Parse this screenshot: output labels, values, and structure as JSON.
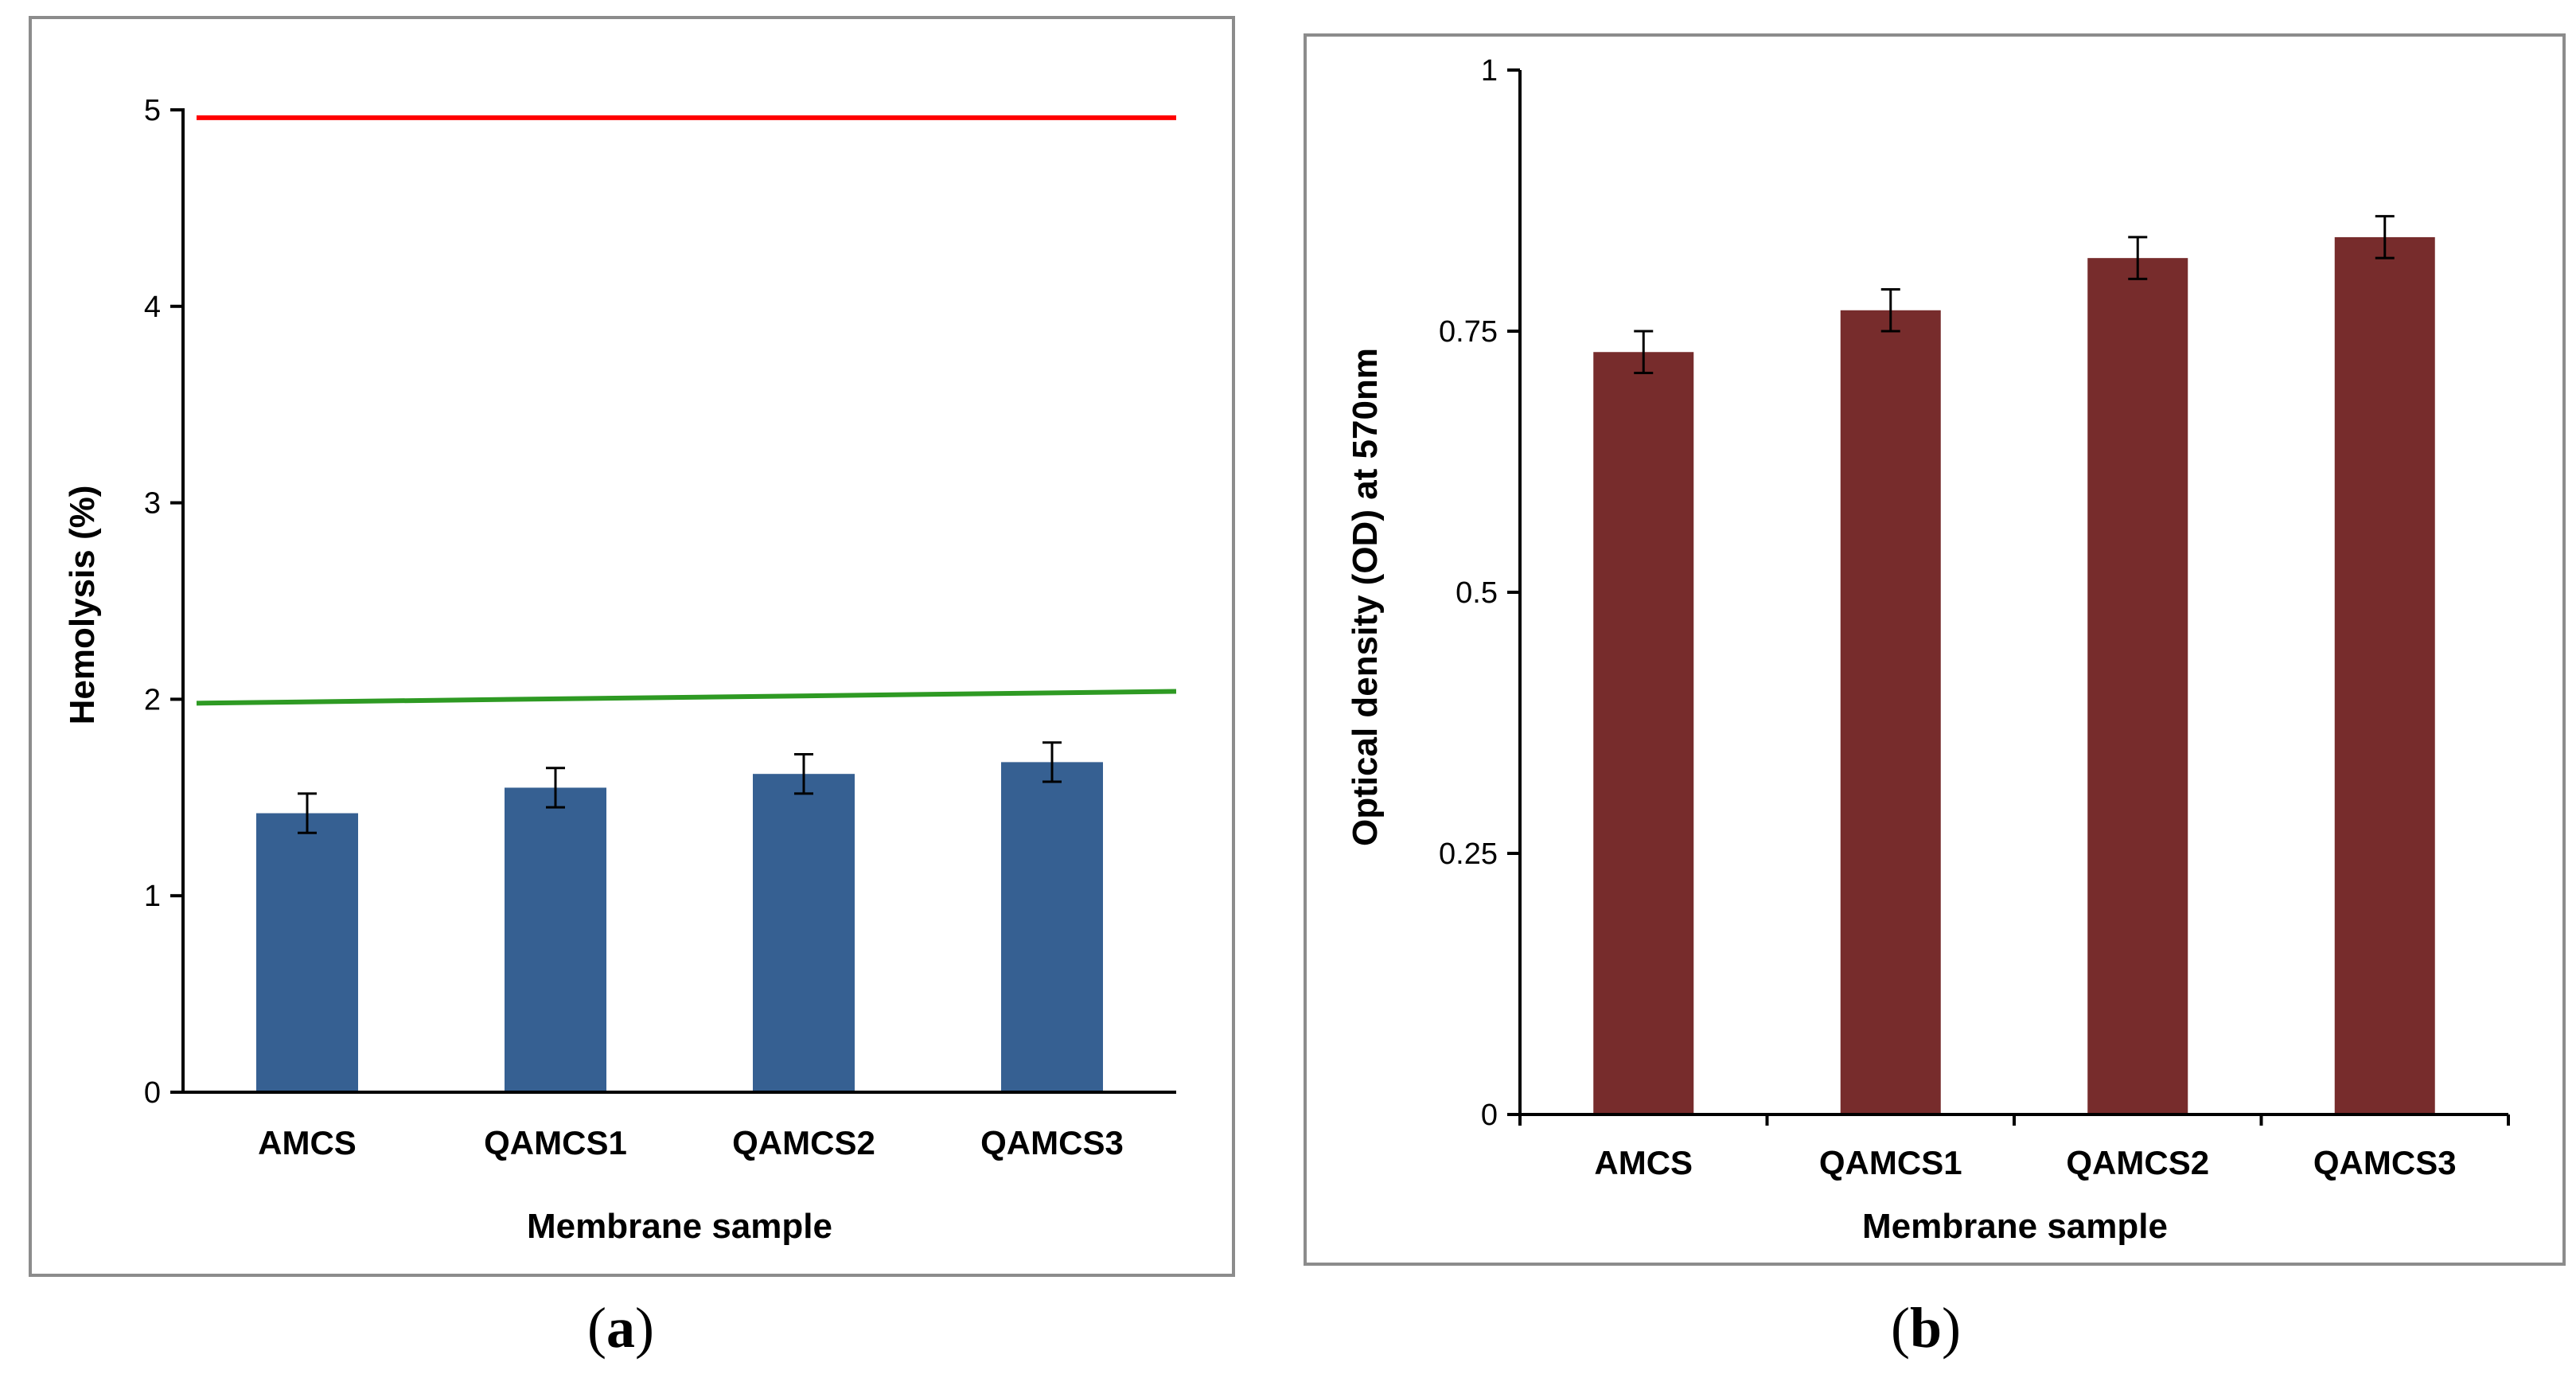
{
  "chart_data": [
    {
      "type": "bar",
      "panel_label_open": "(",
      "panel_label_letter": "a",
      "panel_label_close": ")",
      "categories": [
        "AMCS",
        "QAMCS1",
        "QAMCS2",
        "QAMCS3"
      ],
      "values": [
        1.42,
        1.55,
        1.62,
        1.68
      ],
      "errors": [
        0.1,
        0.1,
        0.1,
        0.1
      ],
      "bar_color": "#366092",
      "xlabel": "Membrane sample",
      "ylabel": "Hemolysis (%)",
      "ylim": [
        0,
        5
      ],
      "yticks": [
        0,
        1,
        2,
        3,
        4,
        5
      ],
      "ytick_labels": [
        "0",
        "1",
        "2",
        "3",
        "4",
        "5"
      ],
      "reference_lines": [
        {
          "name": "red-threshold-line",
          "color": "#ff0000",
          "y_start": 4.96,
          "y_end": 4.96
        },
        {
          "name": "green-threshold-line",
          "color": "#2e9a23",
          "y_start": 1.98,
          "y_end": 2.04
        }
      ],
      "grid": false
    },
    {
      "type": "bar",
      "panel_label_open": "(",
      "panel_label_letter": "b",
      "panel_label_close": ")",
      "categories": [
        "AMCS",
        "QAMCS1",
        "QAMCS2",
        "QAMCS3"
      ],
      "values": [
        0.73,
        0.77,
        0.82,
        0.84
      ],
      "errors": [
        0.02,
        0.02,
        0.02,
        0.02
      ],
      "bar_color": "#772c2c",
      "xlabel": "Membrane sample",
      "ylabel": "Optical density (OD) at 570nm",
      "ylim": [
        0,
        1
      ],
      "yticks": [
        0,
        0.25,
        0.5,
        0.75,
        1
      ],
      "ytick_labels": [
        "0",
        "0.25",
        "0.5",
        "0.75",
        "1"
      ],
      "grid": false
    }
  ]
}
